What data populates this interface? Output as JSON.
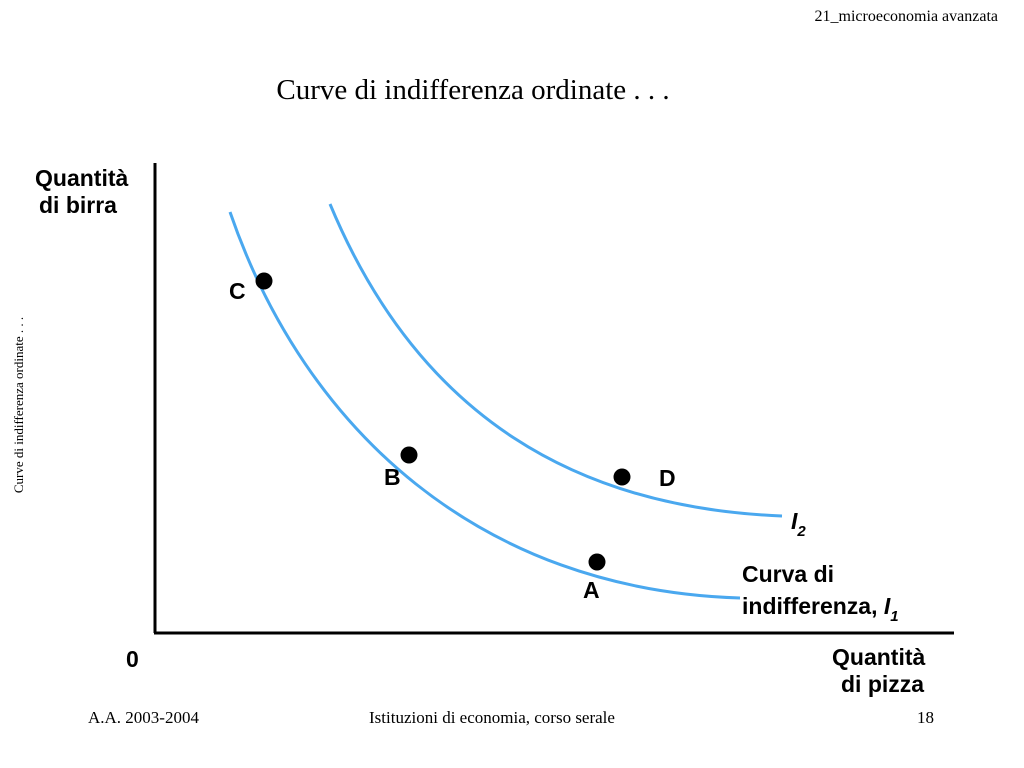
{
  "header": {
    "course_tag": "21_microeconomia avanzata"
  },
  "slide": {
    "title": "Curve di indifferenza ordinate . . .",
    "side_caption": "Curve di indifferenza ordinate . . ."
  },
  "diagram": {
    "y_axis_label_line1": "Quantità",
    "y_axis_label_line2": "di birra",
    "x_axis_label_line1": "Quantità",
    "x_axis_label_line2": "di pizza",
    "origin_label": "0",
    "points": {
      "a": "A",
      "b": "B",
      "c": "C",
      "d": "D"
    },
    "curve_i1_label_line1": "Curva di",
    "curve_i1_label_line2": "indifferenza, ",
    "curve_i1_symbol": "I",
    "curve_i1_subscript": "1",
    "curve_i2_symbol": "I",
    "curve_i2_subscript": "2",
    "curve_color": "#4aa8ef",
    "axis_color": "#000000"
  },
  "footer": {
    "left": "A.A. 2003-2004",
    "center": "Istituzioni di economia, corso serale",
    "page_number": "18"
  }
}
